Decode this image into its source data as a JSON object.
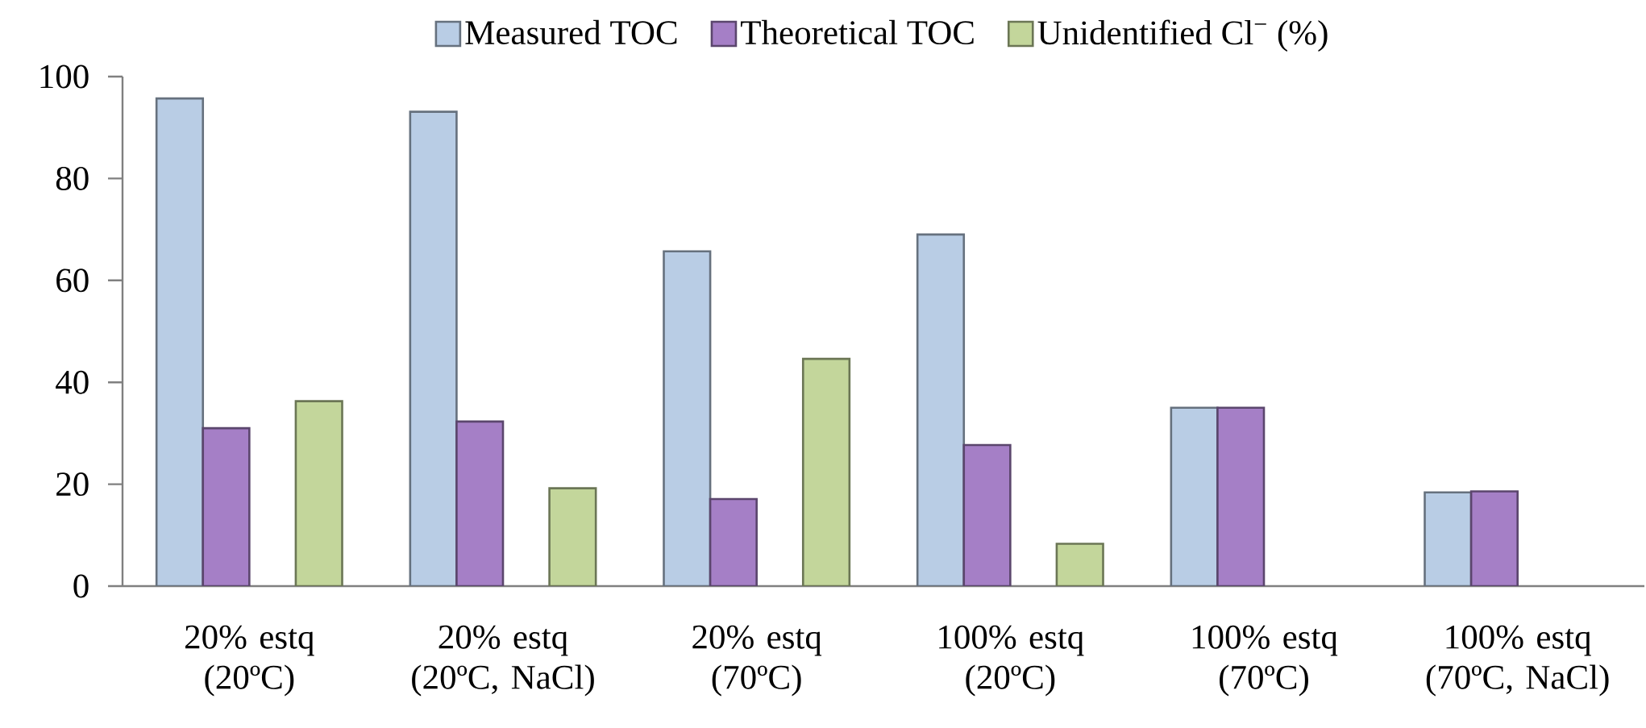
{
  "chart_data": {
    "type": "bar",
    "categories": [
      "20% estq (20ºC)",
      "20% estq (20ºC, NaCl)",
      "20% estq (70ºC)",
      "100% estq (20ºC)",
      "100% estq (70ºC)",
      "100% estq (70ºC, NaCl)"
    ],
    "series": [
      {
        "name": "Measured TOC",
        "color": "#b9cde5",
        "values": [
          95.7,
          93.1,
          65.7,
          69.0,
          35.0,
          18.4
        ]
      },
      {
        "name": "Theoretical TOC",
        "color": "#a57fc6",
        "values": [
          31.0,
          32.3,
          17.1,
          27.7,
          35.0,
          18.6
        ]
      },
      {
        "name": "Unidentified Cl$^{−}$ (%)",
        "color": "#c3d69b",
        "values": [
          36.3,
          19.2,
          44.6,
          8.3,
          null,
          null
        ]
      }
    ],
    "ylim": [
      0,
      100
    ],
    "yticks": [
      0,
      20,
      40,
      60,
      80,
      100
    ],
    "grid": false,
    "legend": "top"
  }
}
